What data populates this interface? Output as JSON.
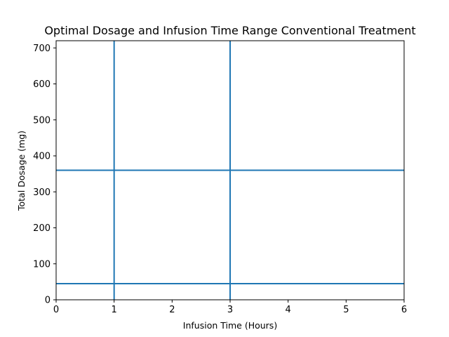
{
  "chart_data": {
    "type": "line",
    "title": "Optimal Dosage and Infusion Time Range Conventional Treatment",
    "xlabel": "Infusion Time (Hours)",
    "ylabel": "Total Dosage (mg)",
    "xlim": [
      0,
      6
    ],
    "ylim": [
      0,
      720
    ],
    "xticks": [
      0,
      1,
      2,
      3,
      4,
      5,
      6
    ],
    "yticks": [
      0,
      100,
      200,
      300,
      400,
      500,
      600,
      700
    ],
    "grid": false,
    "line_color": "#1f77b4",
    "vertical_lines": [
      1,
      3
    ],
    "horizontal_lines": [
      45,
      360
    ]
  }
}
